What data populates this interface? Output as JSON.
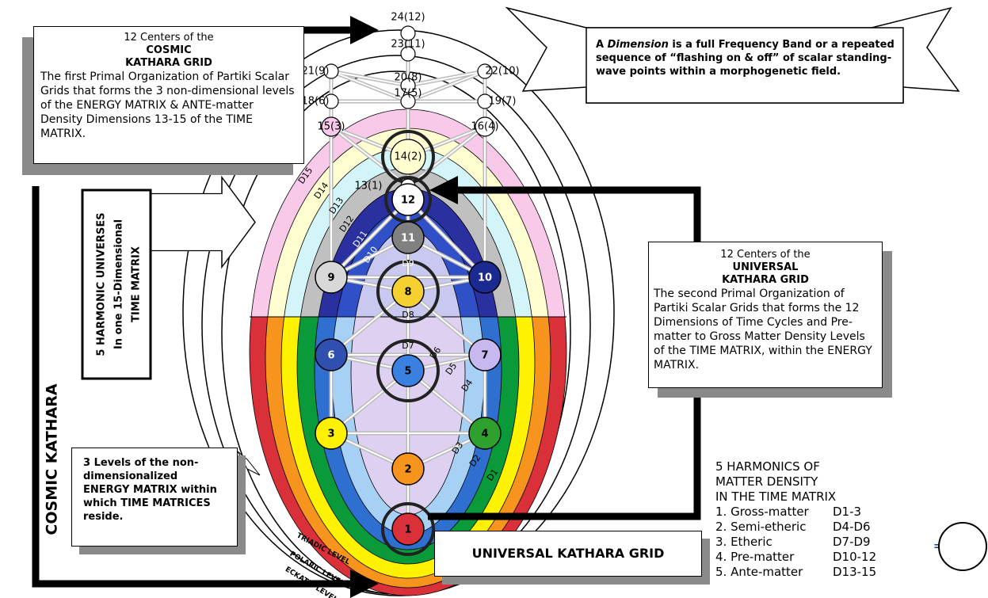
{
  "nodes_outer": [
    "24(12)",
    "23(11)",
    "21(9)",
    "20(8)",
    "22(10)",
    "18(6)",
    "17(5)",
    "19(7)",
    "15(3)",
    "16(4)",
    "14(2)",
    "13(1)"
  ],
  "nodes_inner": [
    "1",
    "2",
    "3",
    "4",
    "5",
    "6",
    "7",
    "8",
    "9",
    "10",
    "11",
    "12"
  ],
  "dimensions": [
    "D1",
    "D2",
    "D3",
    "D4",
    "D5",
    "D6",
    "D7",
    "D8",
    "D9",
    "D10",
    "D11",
    "D12",
    "D13",
    "D14",
    "D15"
  ],
  "cosmic_box": {
    "line1": "12 Centers of the",
    "line2": "COSMIC",
    "line3": "KATHARA GRID",
    "body": "The first Primal Organization of Partiki Scalar Grids that forms the 3 non-dimensional levels of the ENERGY MATRIX & ANTE-matter Density Dimensions 13-15 of the TIME MATRIX."
  },
  "banner": {
    "lead": "A",
    "term": "Dimension",
    "rest": "is a full Frequency Band or a repeated sequence of “flashing on & off” of scalar standing-wave points within a morphogenetic field."
  },
  "universal_box": {
    "line1": "12 Centers of the",
    "line2": "UNIVERSAL",
    "line3": "KATHARA GRID",
    "body": "The second Primal Organization of Partiki Scalar Grids that forms the 12 Dimensions of Time Cycles and Pre-matter to Gross Matter Density Levels of the TIME MATRIX, within the ENERGY MATRIX."
  },
  "harmonic_box": [
    "5 HARMONIC UNIVERSES",
    "In one 15-Dimensional",
    "TIME MATRIX"
  ],
  "cosmic_kathara": "COSMIC KATHARA",
  "energy_box": "3 Levels of the non-dimensionalized ENERGY MATRIX within which TIME MATRICES reside.",
  "levels": [
    "TRIADIC LEVEL",
    "POLARIC LEVEL",
    "ECKATIC LEVEL"
  ],
  "universal_label": "UNIVERSAL KATHARA GRID",
  "harmonics": {
    "heading": [
      "5 HARMONICS OF",
      "MATTER DENSITY",
      "IN THE TIME MATRIX"
    ],
    "items": [
      {
        "name": "1. Gross-matter",
        "range": "D1-3"
      },
      {
        "name": "2. Semi-etheric",
        "range": "D4-D6"
      },
      {
        "name": "3. Etheric",
        "range": "D7-D9"
      },
      {
        "name": "4. Pre-matter",
        "range": "D10-12"
      },
      {
        "name": "5. Ante-matter",
        "range": "D13-15"
      }
    ]
  },
  "equals": "="
}
